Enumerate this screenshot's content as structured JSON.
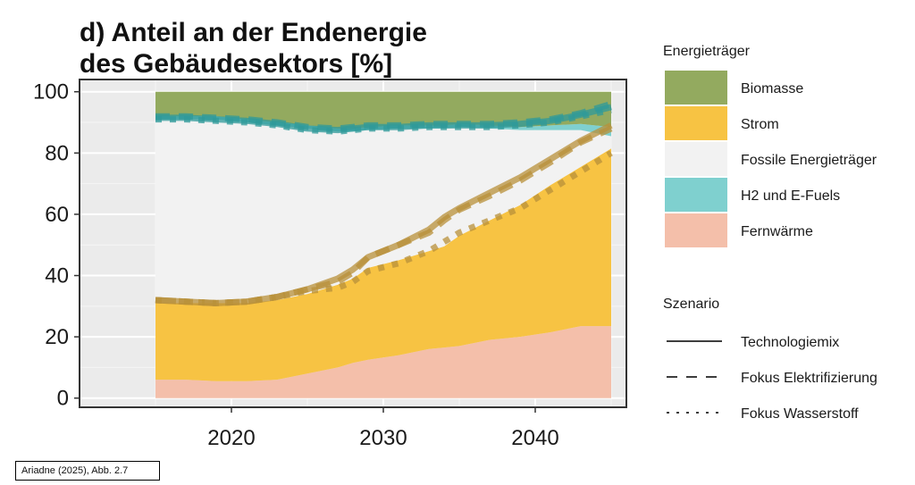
{
  "chart_data": {
    "type": "area",
    "title": [
      "d) Anteil an der Endenergie",
      "des Gebäudesektors [%]"
    ],
    "x": [
      2015,
      2017,
      2019,
      2021,
      2023,
      2025,
      2027,
      2028,
      2029,
      2031,
      2033,
      2034,
      2035,
      2037,
      2039,
      2041,
      2043,
      2045
    ],
    "xlim": [
      2010,
      2046
    ],
    "ylim": [
      -3,
      104
    ],
    "xticks": [
      2020,
      2030,
      2040
    ],
    "yticks": [
      0,
      20,
      40,
      60,
      80,
      100
    ],
    "grid": true,
    "stack_series": [
      {
        "name": "Fernwärme",
        "color": "#f4bfaa",
        "values": [
          6,
          6,
          5.5,
          5.5,
          6,
          8,
          10,
          11.5,
          12.5,
          14,
          16,
          16.5,
          17,
          19,
          20,
          21.5,
          23.5,
          23.5
        ]
      },
      {
        "name": "Strom",
        "color": "#f7c343",
        "values": [
          25,
          25,
          25.5,
          25.5,
          26,
          26,
          27,
          27.5,
          30,
          31,
          32,
          33,
          36,
          39,
          43,
          48,
          52,
          58
        ]
      },
      {
        "name": "Fossile Energieträger",
        "color": "#f2f2f2",
        "values": [
          60,
          60,
          60,
          59,
          57,
          54,
          50,
          48,
          45,
          43,
          40,
          38.5,
          35.5,
          30,
          24.5,
          18,
          12,
          4
        ]
      },
      {
        "name": "H2 und E-Fuels",
        "color": "#7fd0cf",
        "values": [
          1,
          1,
          1,
          1,
          1,
          1,
          1,
          1,
          1,
          1,
          1,
          1,
          1,
          1,
          1,
          1.5,
          2,
          3
        ]
      },
      {
        "name": "Biomasse",
        "color": "#93aa5f",
        "values": [
          8,
          8,
          8,
          9,
          10,
          11,
          12,
          12,
          11.5,
          11,
          11,
          11,
          10.5,
          11,
          11.5,
          11,
          10.5,
          11.5
        ]
      }
    ],
    "band_lines": [
      {
        "boundary": "Strom",
        "scenario": "Technologiemix",
        "color": "#b8903a",
        "values": [
          32,
          31.5,
          31,
          31.5,
          33,
          35.5,
          39,
          42,
          46,
          50,
          55,
          59,
          62,
          67,
          72,
          78,
          84,
          89
        ]
      },
      {
        "boundary": "Strom",
        "scenario": "Fokus Elektrifizierung",
        "color": "#b8903a",
        "values": [
          32,
          31.5,
          31,
          31.5,
          33,
          35.5,
          38,
          41,
          46,
          50,
          54,
          58,
          61.5,
          66,
          71,
          77,
          83.5,
          88
        ]
      },
      {
        "boundary": "Strom",
        "scenario": "Fokus Wasserstoff",
        "color": "#b8903a",
        "values": [
          32,
          31.5,
          31,
          31.5,
          33,
          35,
          36,
          38,
          41.5,
          44,
          48,
          51,
          54,
          58,
          62,
          68,
          74,
          80
        ]
      },
      {
        "boundary": "H2 und E-Fuels",
        "scenario": "Technologiemix",
        "color": "#2f9a9a",
        "values": [
          91.5,
          91.5,
          91,
          90.5,
          89.5,
          88,
          87.5,
          88,
          88.5,
          88.5,
          89,
          89,
          89,
          89,
          89.5,
          90.5,
          92.5,
          95
        ]
      },
      {
        "boundary": "H2 und E-Fuels",
        "scenario": "Fokus Elektrifizierung",
        "color": "#2f9a9a",
        "values": [
          92,
          92,
          91.5,
          91,
          90,
          88.5,
          88,
          88.5,
          89,
          89,
          89.5,
          89.5,
          89.5,
          89.5,
          90,
          91,
          93,
          96
        ]
      },
      {
        "boundary": "H2 und E-Fuels",
        "scenario": "Fokus Wasserstoff",
        "color": "#2f9a9a",
        "values": [
          91,
          91,
          90.5,
          90,
          89,
          87.5,
          87,
          87.5,
          88,
          88,
          88.5,
          88.5,
          88.5,
          88.5,
          89,
          90,
          92,
          94
        ]
      }
    ],
    "legend_placement": "right"
  },
  "legend": {
    "energy_title": "Energieträger",
    "energy_items": [
      {
        "label": "Biomasse",
        "color": "#93aa5f"
      },
      {
        "label": "Strom",
        "color": "#f7c343"
      },
      {
        "label": "Fossile Energieträger",
        "color": "#f2f2f2"
      },
      {
        "label": "H2 und E-Fuels",
        "color": "#7fd0cf"
      },
      {
        "label": "Fernwärme",
        "color": "#f4bfaa"
      }
    ],
    "scenario_title": "Szenario",
    "scenario_items": [
      {
        "label": "Technologiemix",
        "style": "solid"
      },
      {
        "label": "Fokus Elektrifizierung",
        "style": "dashed"
      },
      {
        "label": "Fokus Wasserstoff",
        "style": "dotted"
      }
    ]
  },
  "source": "Ariadne (2025), Abb. 2.7"
}
